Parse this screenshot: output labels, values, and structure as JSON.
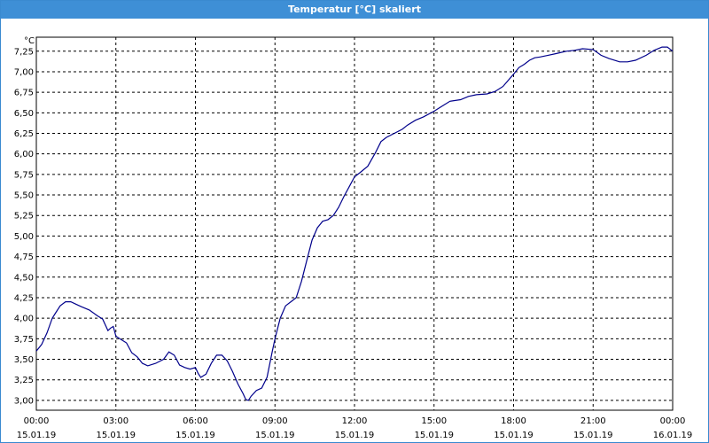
{
  "window": {
    "title": "Temperatur [°C] skaliert"
  },
  "colors": {
    "titlebar": "#3e8fd6",
    "line": "#00008b",
    "grid": "#000000"
  },
  "chart_data": {
    "type": "line",
    "title": "Temperatur [°C] skaliert",
    "ylabel": "°C",
    "xlabel": "",
    "ylim": [
      2.88,
      7.42
    ],
    "xlim_hours": [
      0,
      24
    ],
    "grid": true,
    "y_ticks": [
      "7,25",
      "7,00",
      "6,75",
      "6,50",
      "6,25",
      "6,00",
      "5,75",
      "5,50",
      "5,25",
      "5,00",
      "4,75",
      "4,50",
      "4,25",
      "4,00",
      "3,75",
      "3,50",
      "3,25",
      "3,00"
    ],
    "y_tick_values": [
      7.25,
      7.0,
      6.75,
      6.5,
      6.25,
      6.0,
      5.75,
      5.5,
      5.25,
      5.0,
      4.75,
      4.5,
      4.25,
      4.0,
      3.75,
      3.5,
      3.25,
      3.0
    ],
    "x_ticks": [
      {
        "time": "00:00",
        "date": "15.01.19",
        "hour": 0
      },
      {
        "time": "03:00",
        "date": "15.01.19",
        "hour": 3
      },
      {
        "time": "06:00",
        "date": "15.01.19",
        "hour": 6
      },
      {
        "time": "09:00",
        "date": "15.01.19",
        "hour": 9
      },
      {
        "time": "12:00",
        "date": "15.01.19",
        "hour": 12
      },
      {
        "time": "15:00",
        "date": "15.01.19",
        "hour": 15
      },
      {
        "time": "18:00",
        "date": "15.01.19",
        "hour": 18
      },
      {
        "time": "21:00",
        "date": "15.01.19",
        "hour": 21
      },
      {
        "time": "00:00",
        "date": "16.01.19",
        "hour": 24
      }
    ],
    "series": [
      {
        "x": [
          0,
          0.2,
          0.4,
          0.6,
          0.7,
          0.9,
          1.1,
          1.3,
          1.5,
          1.7,
          2.0,
          2.3,
          2.5,
          2.7,
          2.8,
          2.9,
          3.0,
          3.2,
          3.4,
          3.6,
          3.8,
          4.0,
          4.2,
          4.5,
          4.8,
          5.0,
          5.2,
          5.4,
          5.6,
          5.8,
          6.0,
          6.1,
          6.2,
          6.4,
          6.6,
          6.8,
          7.0,
          7.2,
          7.4,
          7.6,
          7.8,
          7.9,
          8.0,
          8.1,
          8.3,
          8.5,
          8.7,
          8.9,
          9.0,
          9.2,
          9.4,
          9.6,
          9.8,
          10.0,
          10.2,
          10.4,
          10.6,
          10.8,
          11.0,
          11.2,
          11.4,
          11.6,
          11.8,
          12.0,
          12.2,
          12.5,
          12.8,
          13.0,
          13.2,
          13.5,
          13.8,
          14.0,
          14.3,
          14.6,
          15.0,
          15.3,
          15.6,
          16.0,
          16.3,
          16.6,
          17.0,
          17.3,
          17.6,
          18.0,
          18.2,
          18.4,
          18.6,
          18.8,
          19.0,
          19.3,
          19.6,
          20.0,
          20.3,
          20.6,
          21.0,
          21.3,
          21.6,
          22.0,
          22.3,
          22.6,
          23.0,
          23.3,
          23.6,
          23.8,
          24.0
        ],
        "y": [
          3.6,
          3.68,
          3.82,
          4.0,
          4.05,
          4.15,
          4.2,
          4.2,
          4.17,
          4.14,
          4.1,
          4.03,
          3.99,
          3.85,
          3.88,
          3.9,
          3.78,
          3.74,
          3.7,
          3.58,
          3.53,
          3.45,
          3.42,
          3.45,
          3.5,
          3.59,
          3.55,
          3.43,
          3.4,
          3.38,
          3.4,
          3.33,
          3.28,
          3.32,
          3.45,
          3.55,
          3.55,
          3.48,
          3.35,
          3.2,
          3.08,
          3.01,
          3.0,
          3.05,
          3.12,
          3.15,
          3.28,
          3.6,
          3.75,
          4.0,
          4.15,
          4.2,
          4.25,
          4.45,
          4.7,
          4.95,
          5.1,
          5.18,
          5.2,
          5.25,
          5.35,
          5.48,
          5.6,
          5.72,
          5.77,
          5.85,
          6.02,
          6.15,
          6.2,
          6.25,
          6.3,
          6.35,
          6.41,
          6.45,
          6.52,
          6.58,
          6.64,
          6.66,
          6.7,
          6.72,
          6.73,
          6.76,
          6.82,
          6.97,
          7.05,
          7.09,
          7.14,
          7.17,
          7.18,
          7.2,
          7.22,
          7.25,
          7.26,
          7.28,
          7.27,
          7.2,
          7.16,
          7.12,
          7.12,
          7.14,
          7.2,
          7.26,
          7.3,
          7.3,
          7.25
        ]
      }
    ]
  }
}
